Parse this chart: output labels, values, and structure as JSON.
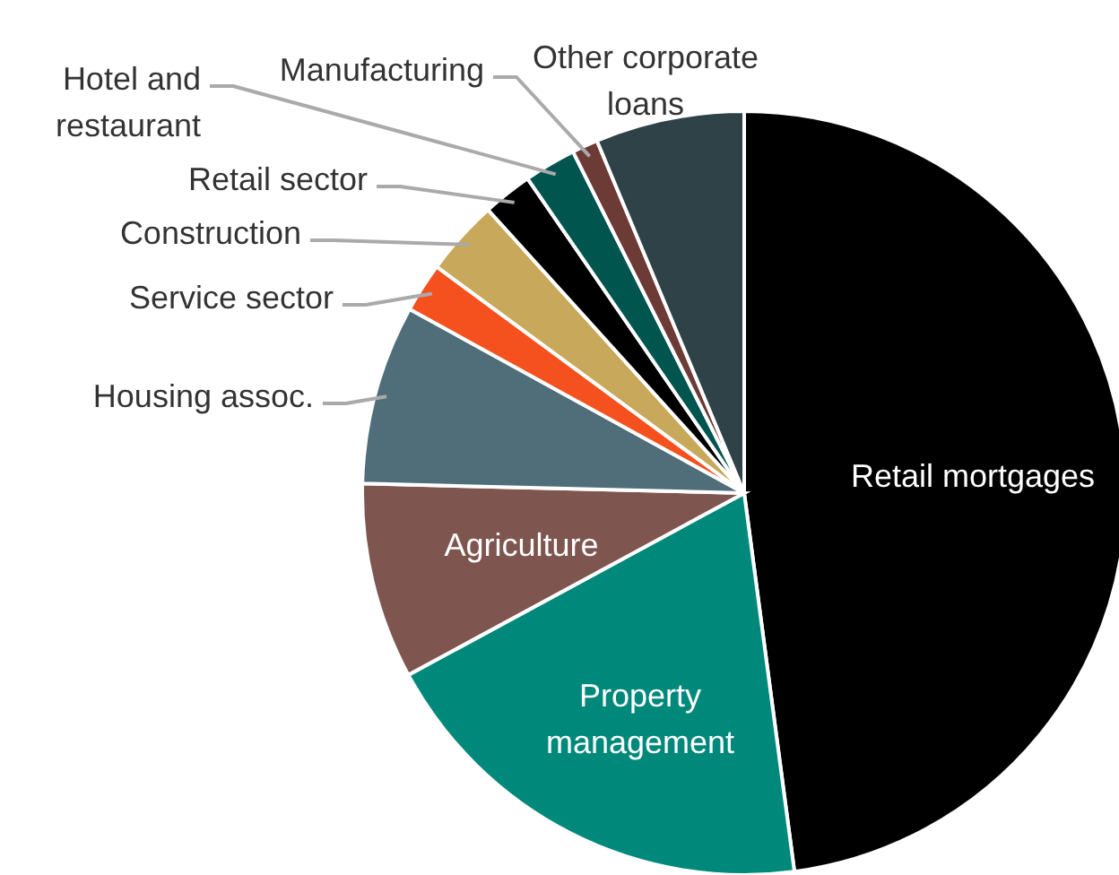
{
  "chart_data": {
    "type": "pie",
    "categories": [
      "Retail mortgages",
      "Property\nmanagement",
      "Agriculture",
      "Housing assoc.",
      "Service sector",
      "Construction",
      "Retail sector",
      "Hotel and\nrestaurant",
      "Manufacturing",
      "Other corporate\nloans"
    ],
    "values": [
      47.9,
      19.2,
      8.3,
      7.6,
      2.1,
      3.2,
      2.1,
      2.2,
      1.1,
      6.3
    ],
    "colors": [
      "#000000",
      "#00897b",
      "#7f564f",
      "#4f6e7a",
      "#f4511e",
      "#c8a85a",
      "#000000",
      "#00564f",
      "#6d3b35",
      "#2f4248"
    ]
  }
}
